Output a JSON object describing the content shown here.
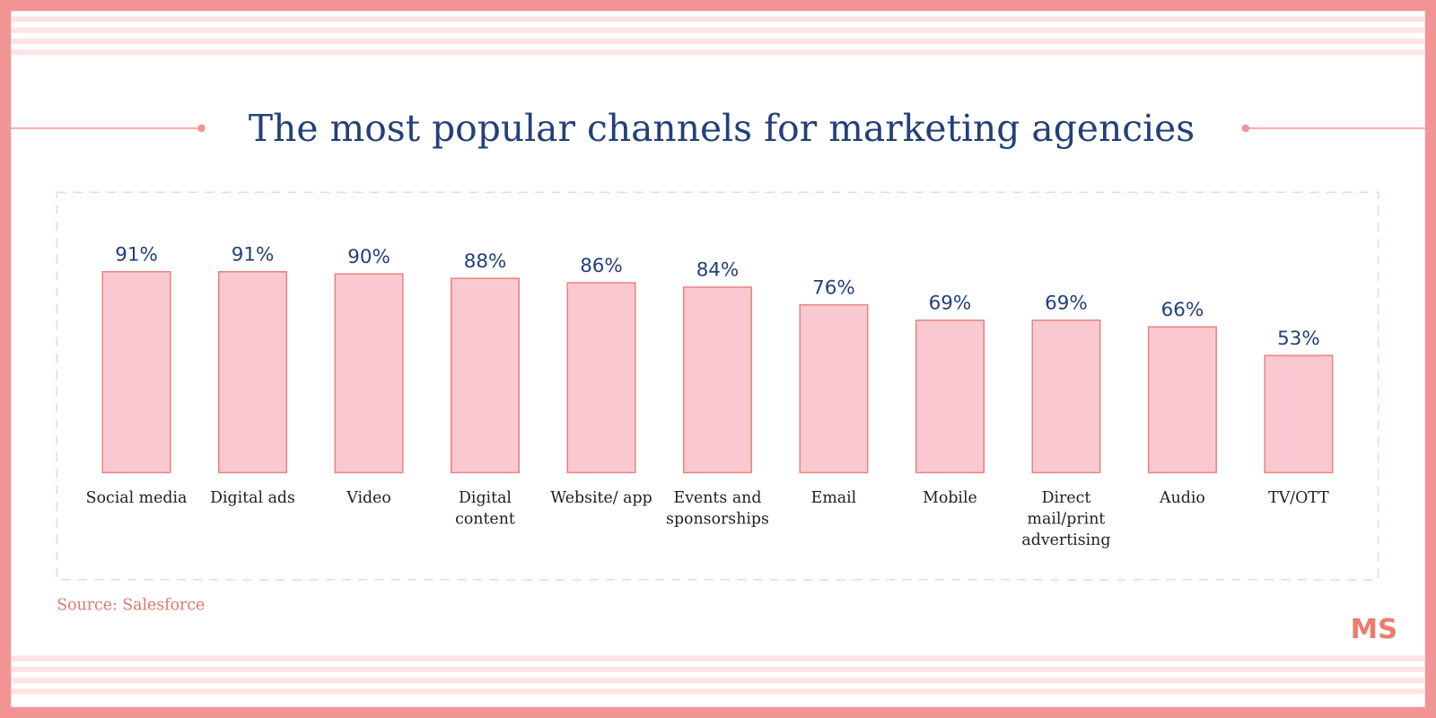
{
  "chart_data": {
    "type": "bar",
    "title": "The most popular channels for marketing agencies",
    "categories": [
      "Social media",
      "Digital ads",
      "Video",
      "Digital content",
      "Website/ app",
      "Events and sponsorships",
      "Email",
      "Mobile",
      "Direct mail/print advertising",
      "Audio",
      "TV/OTT"
    ],
    "values": [
      91,
      91,
      90,
      88,
      86,
      84,
      76,
      69,
      69,
      66,
      53
    ],
    "value_labels": [
      "91%",
      "91%",
      "90%",
      "88%",
      "86%",
      "84%",
      "76%",
      "69%",
      "69%",
      "66%",
      "53%"
    ],
    "color": "#fac8d0",
    "edge_color": "#e8857f",
    "source": "Source: Salesforce",
    "logo": "MS"
  }
}
